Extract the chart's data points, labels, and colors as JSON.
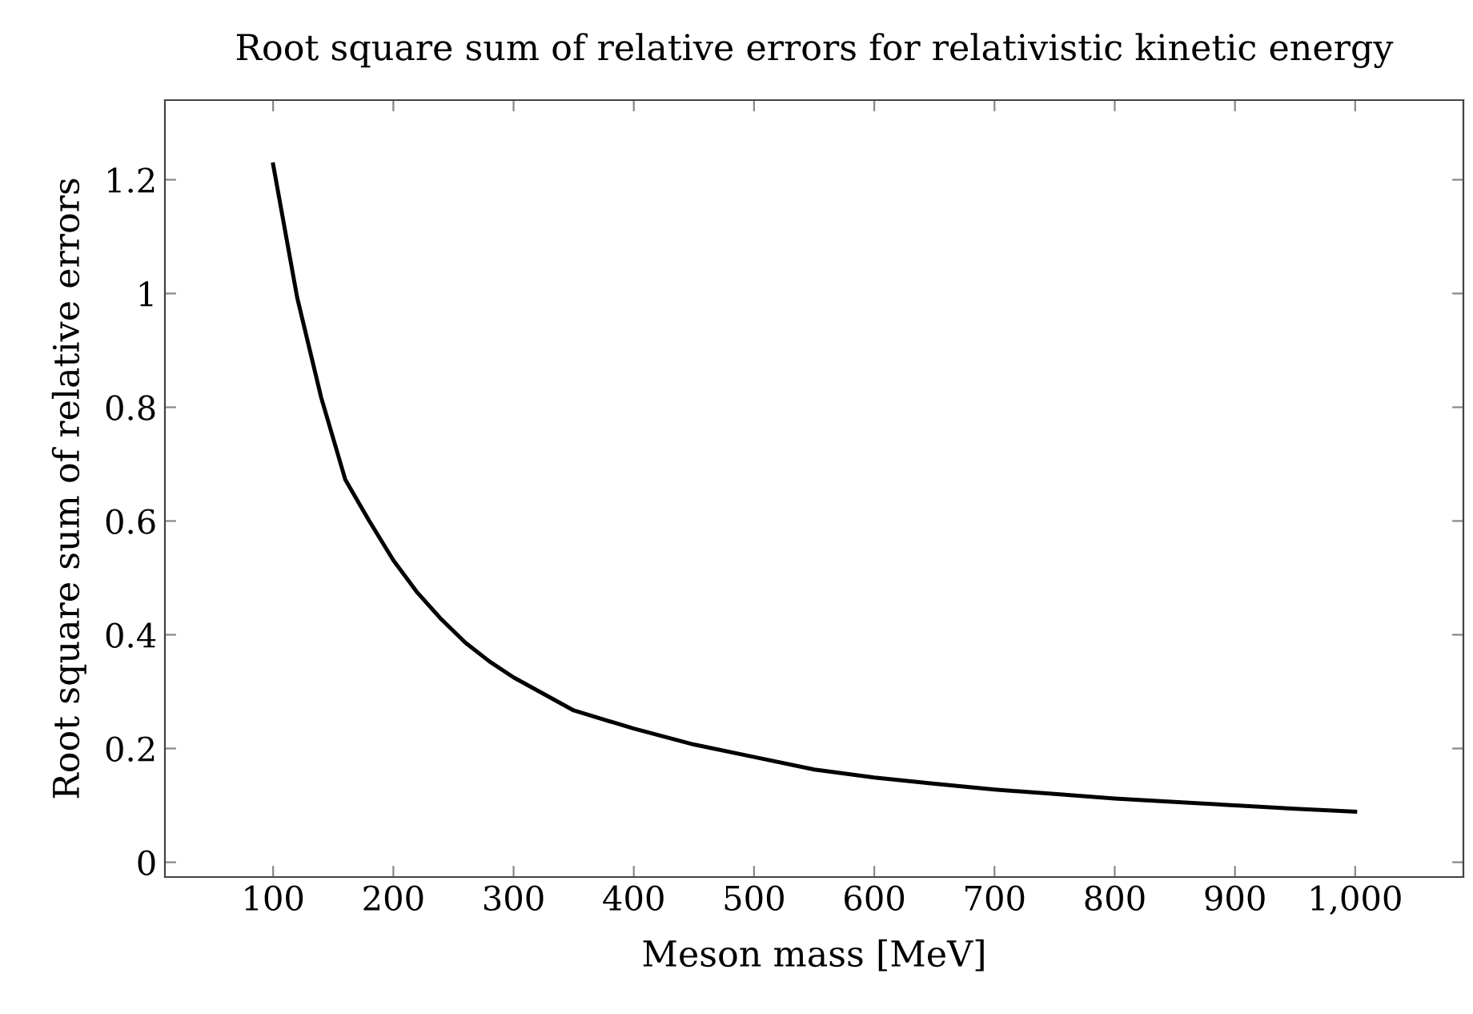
{
  "chart_data": {
    "type": "line",
    "title": "Root square sum of relative errors for relativistic kinetic energy",
    "xlabel": "Meson mass [MeV]",
    "ylabel": "Root square sum of relative errors",
    "series": [
      {
        "color": "#000000",
        "x": [
          100,
          120,
          140,
          160,
          180,
          200,
          220,
          240,
          260,
          280,
          300,
          350,
          400,
          450,
          500,
          550,
          600,
          650,
          700,
          750,
          800,
          850,
          900,
          950,
          1000
        ],
        "values": [
          1.227,
          0.993,
          0.817,
          0.673,
          0.6,
          0.531,
          0.474,
          0.427,
          0.386,
          0.353,
          0.325,
          0.267,
          0.235,
          0.207,
          0.185,
          0.163,
          0.149,
          0.138,
          0.128,
          0.12,
          0.112,
          0.106,
          0.1,
          0.094,
          0.089
        ]
      }
    ],
    "xlim": [
      10,
      1090
    ],
    "xticks": [
      100,
      200,
      300,
      400,
      500,
      600,
      700,
      800,
      900,
      {
        "value": 1000,
        "label": "1,000"
      }
    ],
    "ylim": [
      -0.026,
      1.34
    ],
    "yticks": [
      0,
      0.2,
      0.4,
      0.6,
      0.8,
      1,
      1.2
    ],
    "grid": false,
    "legend": false,
    "marker": "none",
    "line_style": "solid"
  }
}
